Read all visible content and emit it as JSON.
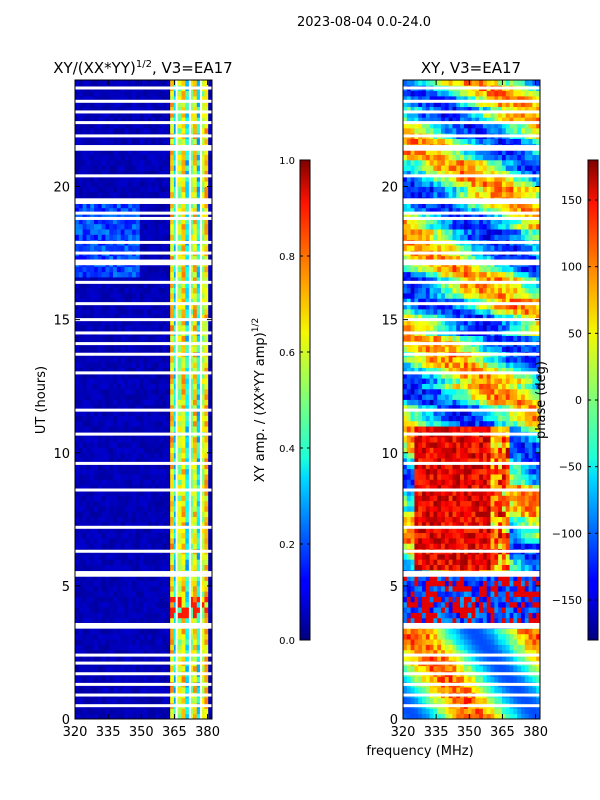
{
  "suptitle": "2023-08-04 0.0-24.0",
  "chart_data": [
    {
      "type": "heatmap",
      "title_main": "XY/(XX*YY)",
      "title_exp": "1/2",
      "title_tail": ", V3=EA17",
      "xlabel": "",
      "ylabel": "UT (hours)",
      "xlim": [
        320,
        382
      ],
      "ylim": [
        0,
        24
      ],
      "xticks": [
        "320",
        "335",
        "350",
        "365",
        "380"
      ],
      "xtick_values": [
        320,
        335,
        350,
        365,
        380
      ],
      "yticks": [
        "0",
        "5",
        "10",
        "15",
        "20"
      ],
      "ytick_values": [
        0,
        5,
        10,
        15,
        20
      ],
      "colorbar": {
        "label_main": "XY amp. / (XX*YY amp)",
        "label_exp": "1/2",
        "range": [
          0.0,
          1.0
        ],
        "ticks": [
          "0.0",
          "0.2",
          "0.4",
          "0.6",
          "0.8",
          "1.0"
        ],
        "tick_values": [
          0.0,
          0.2,
          0.4,
          0.6,
          0.8,
          1.0
        ]
      },
      "gaps_ut": [
        0.5,
        0.9,
        1.3,
        1.7,
        2.1,
        2.4,
        3.45,
        3.55,
        5.4,
        5.5,
        6.3,
        7.2,
        8.6,
        9.6,
        10.7,
        11.6,
        13.0,
        13.7,
        14.1,
        14.5,
        15.0,
        15.6,
        16.4,
        17.1,
        17.2,
        17.5,
        17.9,
        18.8,
        19.0,
        19.4,
        19.5,
        20.4,
        21.4,
        21.5,
        21.9,
        22.4,
        22.8,
        23.2,
        23.7
      ]
    },
    {
      "type": "heatmap",
      "title_main": "XY, V3=EA17",
      "xlabel": "frequency (MHz)",
      "ylabel": "",
      "xlim": [
        320,
        382
      ],
      "ylim": [
        0,
        24
      ],
      "xticks": [
        "320",
        "335",
        "350",
        "365",
        "380"
      ],
      "xtick_values": [
        320,
        335,
        350,
        365,
        380
      ],
      "yticks": [
        "0",
        "5",
        "10",
        "15",
        "20"
      ],
      "ytick_values": [
        0,
        5,
        10,
        15,
        20
      ],
      "colorbar": {
        "label_main": "phase (deg)",
        "range": [
          -180,
          180
        ],
        "ticks": [
          "−150",
          "−100",
          "−50",
          "0",
          "50",
          "100",
          "150"
        ],
        "tick_values": [
          -150,
          -100,
          -50,
          0,
          50,
          100,
          150
        ]
      },
      "gaps_ut": [
        0.5,
        0.9,
        1.3,
        1.7,
        2.1,
        2.4,
        3.45,
        3.55,
        5.4,
        5.5,
        6.3,
        7.2,
        8.6,
        9.6,
        10.7,
        11.6,
        13.0,
        13.7,
        14.1,
        14.5,
        15.0,
        15.6,
        16.4,
        17.1,
        17.2,
        17.5,
        17.9,
        18.8,
        19.0,
        19.4,
        19.5,
        20.4,
        21.4,
        21.5,
        21.9,
        22.4,
        22.8,
        23.2,
        23.7
      ]
    }
  ]
}
